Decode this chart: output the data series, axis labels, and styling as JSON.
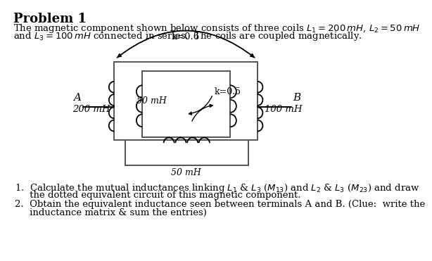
{
  "title": "Problem 1",
  "bg_color": "#ffffff",
  "text_color": "#000000",
  "desc1": "The magnetic component shown below consists of three coils $L_1 = 200\\,mH$, $L_2 = 50\\,mH$",
  "desc2": "and $L_3 = 100\\,mH$ connected in series.  The coils are coupled magnetically.",
  "label_A": "A",
  "label_B": "B",
  "label_200mH": "200 mH",
  "label_100mH": "100 mH",
  "label_50mH_mid": "50 mH",
  "label_50mH_bot": "50 mH",
  "label_k06": "k=0.6",
  "label_k05": "k=0.5",
  "q1a": "1.  Calculate the mutual inductances linking $L_1$ & $L_3$ ($M_{13}$) and $L_2$ & $L_3$ ($M_{23}$) and draw",
  "q1b": "     the dotted equivalent circuit of this magnetic component.",
  "q2a": "2.  Obtain the equivalent inductance seen between terminals A and B. (Clue:  write the",
  "q2b": "     inductance matrix & sum the entries)"
}
